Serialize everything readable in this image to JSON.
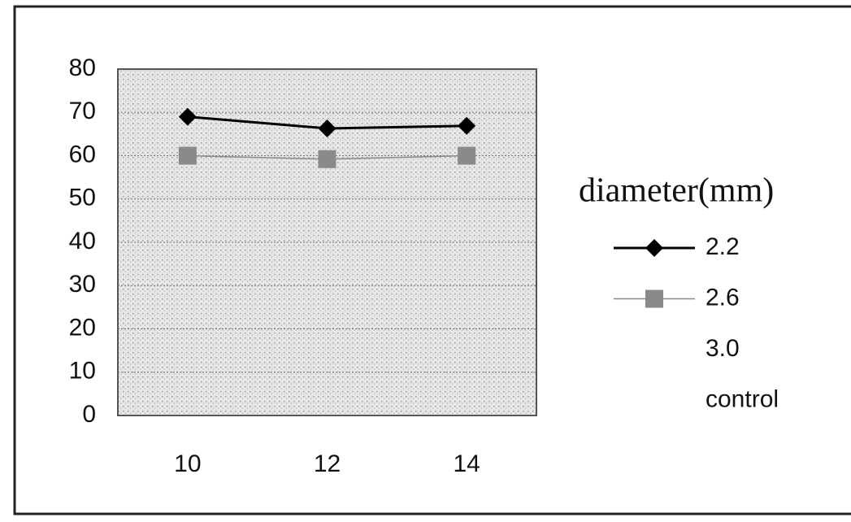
{
  "chart_data": {
    "type": "line",
    "categories": [
      "10",
      "12",
      "14"
    ],
    "legend_title": "diameter(mm)",
    "series": [
      {
        "name": "2.2",
        "color": "#000000",
        "marker": "diamond",
        "values": [
          69,
          66.3,
          66.9
        ]
      },
      {
        "name": "2.6",
        "color": "#8a8a8a",
        "marker": "square",
        "values": [
          60,
          59.2,
          60
        ]
      },
      {
        "name": "3.0",
        "values": [
          null,
          null,
          null
        ]
      },
      {
        "name": "control",
        "values": [
          null,
          null,
          null
        ]
      }
    ],
    "ylim": [
      0,
      80
    ],
    "yticks": [
      0,
      10,
      20,
      30,
      40,
      50,
      60,
      70,
      80
    ],
    "grid": true,
    "legend": "right"
  }
}
